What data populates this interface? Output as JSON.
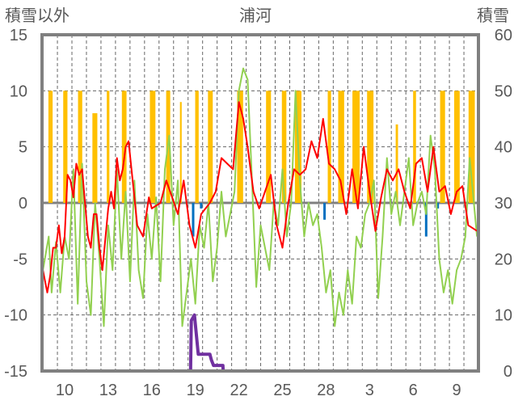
{
  "chart_data": {
    "type": "line",
    "title": "浦河",
    "ylabel_left": "積雪以外",
    "ylabel_right": "積雪",
    "xlim": [
      -1.56,
      28.5
    ],
    "ylim_left": [
      -15,
      15
    ],
    "ylim_right": [
      0,
      60
    ],
    "yticks_left": [
      15,
      10,
      5,
      0,
      -5,
      -10,
      -15
    ],
    "yticks_right": [
      60,
      50,
      40,
      30,
      20,
      10,
      0
    ],
    "xticks": [
      {
        "t": 0,
        "label": "10"
      },
      {
        "t": 3,
        "label": "13"
      },
      {
        "t": 6,
        "label": "16"
      },
      {
        "t": 9,
        "label": "19"
      },
      {
        "t": 12,
        "label": "22"
      },
      {
        "t": 15,
        "label": "25"
      },
      {
        "t": 18,
        "label": "28"
      },
      {
        "t": 21,
        "label": "3"
      },
      {
        "t": 24,
        "label": "6"
      },
      {
        "t": 27,
        "label": "9"
      }
    ],
    "grid": true,
    "colors": {
      "yellow": "#FFC000",
      "red": "#FF0000",
      "green": "#92D050",
      "blue": "#0070C0",
      "purple": "#7030A0",
      "frame": "#808080"
    },
    "yellow_bars": [
      [
        -1.12,
        -0.83,
        10
      ],
      [
        -0.1,
        0.19,
        10
      ],
      [
        0.92,
        1.21,
        10
      ],
      [
        1.91,
        2.25,
        8
      ],
      [
        2.9,
        3.08,
        10
      ],
      [
        3.94,
        4.26,
        10
      ],
      [
        5.87,
        6.25,
        10
      ],
      [
        6.99,
        7.27,
        10
      ],
      [
        7.94,
        8.06,
        9
      ],
      [
        8.99,
        9.23,
        10
      ],
      [
        9.87,
        10.2,
        10
      ],
      [
        11.88,
        12.29,
        10
      ],
      [
        13.87,
        14.21,
        10
      ],
      [
        14.96,
        15.27,
        10
      ],
      [
        15.86,
        16.31,
        10
      ],
      [
        18.12,
        18.35,
        10
      ],
      [
        18.84,
        19.25,
        10
      ],
      [
        19.82,
        20.32,
        10
      ],
      [
        20.83,
        21.27,
        10
      ],
      [
        22.8,
        22.96,
        7
      ],
      [
        24.0,
        24.2,
        10
      ],
      [
        25.86,
        26.2,
        10
      ],
      [
        26.83,
        27.21,
        10
      ],
      [
        27.82,
        28.25,
        10
      ]
    ],
    "blue_bars": [
      [
        8.85,
        -3
      ],
      [
        9.4,
        -0.5
      ],
      [
        17.9,
        -1.5
      ],
      [
        24.9,
        -3
      ],
      [
        25.7,
        -0.5
      ]
    ],
    "red": [
      [
        -1.5,
        -6
      ],
      [
        -1.2,
        -8
      ],
      [
        -1,
        -6.5
      ],
      [
        -0.8,
        -4
      ],
      [
        -0.6,
        -4
      ],
      [
        -0.4,
        -2
      ],
      [
        -0.2,
        -4.5
      ],
      [
        0,
        -3
      ],
      [
        0.2,
        2.5
      ],
      [
        0.4,
        2
      ],
      [
        0.6,
        0.5
      ],
      [
        0.8,
        3.5
      ],
      [
        1,
        2.5
      ],
      [
        1.2,
        3
      ],
      [
        1.4,
        0
      ],
      [
        1.6,
        -3
      ],
      [
        1.8,
        -4
      ],
      [
        2,
        -1
      ],
      [
        2.2,
        -1
      ],
      [
        2.4,
        -4
      ],
      [
        2.6,
        -6
      ],
      [
        3,
        -0.5
      ],
      [
        3.2,
        1
      ],
      [
        3.4,
        -0.5
      ],
      [
        3.6,
        4
      ],
      [
        3.8,
        2
      ],
      [
        4,
        3
      ],
      [
        4.2,
        5
      ],
      [
        4.4,
        5.5
      ],
      [
        4.6,
        3
      ],
      [
        4.8,
        0.5
      ],
      [
        5,
        -2
      ],
      [
        5.4,
        -3
      ],
      [
        5.8,
        0.5
      ],
      [
        6,
        -0.5
      ],
      [
        6.6,
        0
      ],
      [
        7,
        2
      ],
      [
        7.4,
        0.5
      ],
      [
        7.8,
        -1
      ],
      [
        8.2,
        2
      ],
      [
        8.6,
        -2
      ],
      [
        9,
        -4
      ],
      [
        9.4,
        -1
      ],
      [
        10,
        0
      ],
      [
        10.4,
        1
      ],
      [
        10.8,
        4
      ],
      [
        11.2,
        3.5
      ],
      [
        11.6,
        3
      ],
      [
        12,
        9
      ],
      [
        12.3,
        7.5
      ],
      [
        12.6,
        5
      ],
      [
        13,
        1
      ],
      [
        13.4,
        -0.5
      ],
      [
        13.8,
        1
      ],
      [
        14.2,
        2.5
      ],
      [
        14.6,
        -2
      ],
      [
        15,
        -4
      ],
      [
        15.4,
        0
      ],
      [
        15.8,
        3
      ],
      [
        16.2,
        2.5
      ],
      [
        16.6,
        3
      ],
      [
        17,
        5.5
      ],
      [
        17.4,
        4
      ],
      [
        17.8,
        7.5
      ],
      [
        18.2,
        3.5
      ],
      [
        18.6,
        3
      ],
      [
        19,
        2
      ],
      [
        19.4,
        -1
      ],
      [
        19.8,
        3
      ],
      [
        20.2,
        -0.5
      ],
      [
        20.6,
        5
      ],
      [
        21,
        1
      ],
      [
        21.4,
        -2.5
      ],
      [
        21.8,
        0.5
      ],
      [
        22.2,
        3
      ],
      [
        22.6,
        2
      ],
      [
        23,
        3
      ],
      [
        23.4,
        1
      ],
      [
        23.8,
        -0.5
      ],
      [
        24.2,
        3.5
      ],
      [
        24.6,
        4
      ],
      [
        25,
        1
      ],
      [
        25.4,
        5
      ],
      [
        25.8,
        1
      ],
      [
        26.2,
        1.5
      ],
      [
        26.6,
        -1
      ],
      [
        27,
        1
      ],
      [
        27.4,
        1.5
      ],
      [
        27.8,
        -2
      ],
      [
        28.4,
        -2.5
      ]
    ],
    "green": [
      [
        -1.5,
        -6
      ],
      [
        -1.1,
        -3
      ],
      [
        -0.9,
        -8
      ],
      [
        -0.6,
        -3.5
      ],
      [
        -0.3,
        -8
      ],
      [
        0,
        -3
      ],
      [
        0.3,
        -5
      ],
      [
        0.6,
        3
      ],
      [
        0.9,
        -9
      ],
      [
        1.2,
        3.5
      ],
      [
        1.5,
        -7
      ],
      [
        1.8,
        -10
      ],
      [
        2.1,
        0
      ],
      [
        2.4,
        -5
      ],
      [
        2.7,
        -11
      ],
      [
        3,
        -2
      ],
      [
        3.3,
        -6
      ],
      [
        3.6,
        3
      ],
      [
        3.9,
        -5
      ],
      [
        4.2,
        1
      ],
      [
        4.5,
        -7
      ],
      [
        4.8,
        2
      ],
      [
        5.1,
        -6
      ],
      [
        5.4,
        -8.5
      ],
      [
        5.7,
        -1
      ],
      [
        6,
        -5
      ],
      [
        6.3,
        0.5
      ],
      [
        6.6,
        -7
      ],
      [
        6.9,
        3
      ],
      [
        7.2,
        6
      ],
      [
        7.5,
        -2
      ],
      [
        7.8,
        2
      ],
      [
        8.1,
        -11
      ],
      [
        8.4,
        -8
      ],
      [
        8.7,
        -5
      ],
      [
        9,
        -9
      ],
      [
        9.3,
        -2
      ],
      [
        9.6,
        -4
      ],
      [
        9.9,
        0
      ],
      [
        10.2,
        -7
      ],
      [
        10.5,
        -4
      ],
      [
        10.8,
        1
      ],
      [
        11.1,
        -3
      ],
      [
        11.4,
        -1
      ],
      [
        11.7,
        1
      ],
      [
        12,
        10
      ],
      [
        12.3,
        12
      ],
      [
        12.6,
        11
      ],
      [
        12.9,
        2
      ],
      [
        13.2,
        -7.5
      ],
      [
        13.5,
        -2
      ],
      [
        13.8,
        -4
      ],
      [
        14.1,
        -6
      ],
      [
        14.4,
        0
      ],
      [
        14.7,
        -2
      ],
      [
        15,
        3
      ],
      [
        15.3,
        -3
      ],
      [
        15.6,
        0
      ],
      [
        15.9,
        10
      ],
      [
        16.2,
        2
      ],
      [
        16.5,
        -3
      ],
      [
        16.8,
        0
      ],
      [
        17.1,
        -2
      ],
      [
        17.4,
        -1
      ],
      [
        17.7,
        -4
      ],
      [
        18,
        -8
      ],
      [
        18.3,
        -6
      ],
      [
        18.6,
        -11
      ],
      [
        18.9,
        -8
      ],
      [
        19.2,
        -10
      ],
      [
        19.5,
        -6
      ],
      [
        19.8,
        -9
      ],
      [
        20.1,
        -3
      ],
      [
        20.4,
        -4
      ],
      [
        20.7,
        -1
      ],
      [
        21,
        0
      ],
      [
        21.3,
        2
      ],
      [
        21.6,
        -8.5
      ],
      [
        21.9,
        -3
      ],
      [
        22.2,
        4
      ],
      [
        22.5,
        -1
      ],
      [
        22.8,
        1
      ],
      [
        23.1,
        -2
      ],
      [
        23.4,
        1
      ],
      [
        23.7,
        4
      ],
      [
        24,
        -2
      ],
      [
        24.3,
        0
      ],
      [
        24.6,
        1
      ],
      [
        24.9,
        -1
      ],
      [
        25.2,
        6
      ],
      [
        25.5,
        3
      ],
      [
        25.8,
        -5
      ],
      [
        26.1,
        -8
      ],
      [
        26.4,
        -6
      ],
      [
        26.7,
        -9
      ],
      [
        27,
        -6
      ],
      [
        27.3,
        -5
      ],
      [
        27.6,
        -3
      ],
      [
        27.9,
        4
      ],
      [
        28.4,
        -3
      ]
    ],
    "purple_snow_depth": [
      [
        -1.56,
        0
      ],
      [
        8.67,
        0
      ],
      [
        8.72,
        9
      ],
      [
        8.94,
        10
      ],
      [
        9.2,
        3
      ],
      [
        10.0,
        3
      ],
      [
        10.1,
        2
      ],
      [
        10.25,
        1
      ],
      [
        10.9,
        1
      ],
      [
        10.92,
        0
      ],
      [
        28.5,
        0
      ]
    ]
  }
}
